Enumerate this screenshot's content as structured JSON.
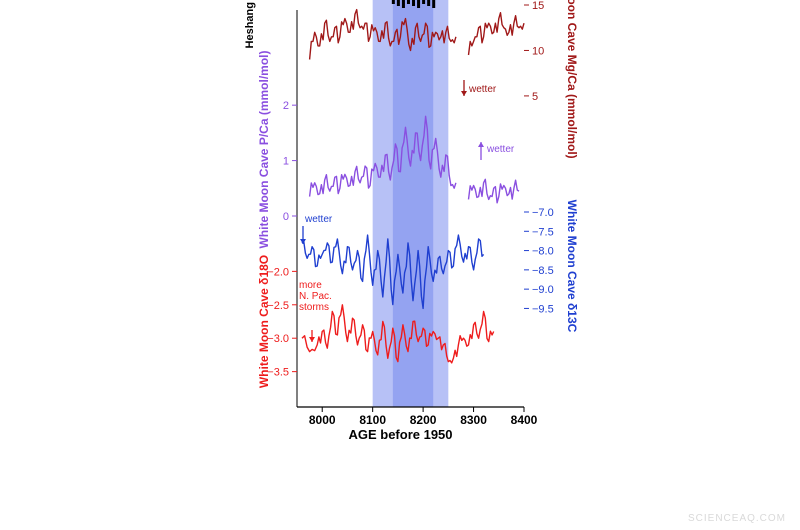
{
  "chart_data": {
    "type": "line",
    "xlabel": "AGE before 1950",
    "xlim": [
      7950,
      8400
    ],
    "x_ticks": [
      "8000",
      "8100",
      "8200",
      "8300",
      "8400"
    ],
    "shaded_intervals": [
      {
        "x_range": [
          8100,
          8250
        ],
        "color": "#aab6f5"
      },
      {
        "x_range": [
          8140,
          8220
        ],
        "color": "#8e9df0"
      }
    ],
    "series": [
      {
        "id": "heshang",
        "ylabel": "Heshang",
        "color": "#000000",
        "x": [
          8140,
          8150,
          8160,
          8170,
          8180,
          8190,
          8200,
          8210,
          8220
        ],
        "y_px_band": "top"
      },
      {
        "id": "mgca",
        "ylabel": "White Moon Cave Mg/Ca (mmol/mol)",
        "color": "#a01818",
        "ylim": [
          4,
          15
        ],
        "y_ticks": [
          "15",
          "10",
          "5"
        ],
        "annotation": "wetter",
        "x": [
          7975,
          7985,
          7995,
          8005,
          8015,
          8025,
          8035,
          8045,
          8055,
          8065,
          8075,
          8085,
          8095,
          8105,
          8115,
          8125,
          8135,
          8145,
          8155,
          8165,
          8175,
          8185,
          8195,
          8205,
          8215,
          8225,
          8235,
          8245,
          8255,
          8265,
          8290,
          8300,
          8310,
          8320,
          8330,
          8340,
          8350,
          8360,
          8370,
          8380,
          8390,
          8400
        ],
        "y": [
          9.0,
          12.0,
          10.5,
          13.0,
          11.0,
          12.5,
          11.5,
          13.5,
          12.0,
          14.0,
          12.5,
          13.0,
          11.5,
          12.5,
          11.0,
          13.0,
          10.5,
          12.0,
          11.5,
          13.5,
          10.0,
          12.5,
          11.0,
          13.0,
          10.5,
          12.0,
          11.5,
          12.0,
          11.0,
          11.5,
          9.5,
          11.0,
          12.5,
          11.5,
          13.0,
          12.0,
          13.5,
          12.5,
          12.0,
          13.0,
          12.5,
          13.0
        ]
      },
      {
        "id": "pca",
        "ylabel": "White Moon Cave P/Ca (mmol/mol)",
        "color": "#8a4fe0",
        "ylim": [
          0,
          2.4
        ],
        "y_ticks": [
          "2",
          "1",
          "0"
        ],
        "annotation": "wetter",
        "x": [
          7975,
          7985,
          7995,
          8005,
          8015,
          8025,
          8035,
          8045,
          8055,
          8065,
          8075,
          8085,
          8095,
          8105,
          8115,
          8125,
          8135,
          8145,
          8155,
          8165,
          8175,
          8185,
          8195,
          8205,
          8215,
          8225,
          8235,
          8245,
          8255,
          8265,
          8290,
          8300,
          8310,
          8320,
          8330,
          8340,
          8350,
          8360,
          8370,
          8380,
          8390
        ],
        "y": [
          0.35,
          0.6,
          0.4,
          0.65,
          0.45,
          0.7,
          0.5,
          0.75,
          0.55,
          0.8,
          0.6,
          0.9,
          0.55,
          0.95,
          0.7,
          1.1,
          0.65,
          1.3,
          0.8,
          1.6,
          0.9,
          1.5,
          1.0,
          1.8,
          0.85,
          1.4,
          0.7,
          1.1,
          0.55,
          0.6,
          0.3,
          0.55,
          0.35,
          0.6,
          0.3,
          0.5,
          0.35,
          0.55,
          0.4,
          0.5,
          0.45
        ]
      },
      {
        "id": "d13c",
        "ylabel": "White Moon Cave δ13C",
        "color": "#1f3fd0",
        "ylim": [
          -9.8,
          -7.0
        ],
        "y_ticks": [
          "-7.0",
          "-7.5",
          "-8.0",
          "-8.5",
          "-9.0",
          "-9.5"
        ],
        "annotation": "wetter",
        "x": [
          7960,
          7970,
          7980,
          7990,
          8000,
          8010,
          8020,
          8030,
          8040,
          8050,
          8060,
          8070,
          8080,
          8090,
          8100,
          8110,
          8120,
          8130,
          8140,
          8150,
          8160,
          8170,
          8180,
          8190,
          8200,
          8210,
          8220,
          8230,
          8240,
          8250,
          8260,
          8270,
          8280,
          8290,
          8300,
          8310,
          8320,
          8340,
          8360,
          8380,
          8400
        ],
        "y": [
          -7.8,
          -8.2,
          -7.9,
          -8.4,
          -8.1,
          -7.8,
          -8.3,
          -7.7,
          -8.6,
          -7.9,
          -8.5,
          -8.0,
          -8.8,
          -7.6,
          -8.9,
          -8.0,
          -9.2,
          -7.7,
          -9.4,
          -8.1,
          -9.1,
          -7.8,
          -9.3,
          -8.0,
          -9.5,
          -7.9,
          -8.8,
          -8.2,
          -8.6,
          -8.0,
          -8.4,
          -7.6,
          -8.3,
          -7.9,
          -8.5,
          -7.7,
          -8.1,
          -7.9,
          -7.8,
          -8.0,
          -7.8
        ]
      },
      {
        "id": "d18o",
        "ylabel": "White Moon Cave δ18O",
        "color": "#ee1c1c",
        "ylim": [
          -3.7,
          -1.8
        ],
        "y_ticks": [
          "-2.0",
          "-2.5",
          "-3.0",
          "-3.5"
        ],
        "annotation": "more N. Pac. storms",
        "x": [
          7960,
          7975,
          7990,
          8000,
          8010,
          8020,
          8030,
          8040,
          8050,
          8060,
          8070,
          8080,
          8090,
          8100,
          8110,
          8120,
          8130,
          8140,
          8150,
          8160,
          8170,
          8180,
          8190,
          8200,
          8210,
          8220,
          8230,
          8240,
          8250,
          8260,
          8270,
          8280,
          8290,
          8300,
          8310,
          8320,
          8330,
          8340,
          8360,
          8380,
          8400
        ],
        "y": [
          -3.0,
          -3.2,
          -3.1,
          -2.9,
          -3.15,
          -2.6,
          -2.95,
          -2.5,
          -3.05,
          -2.7,
          -3.1,
          -2.8,
          -3.2,
          -2.9,
          -3.25,
          -2.75,
          -3.3,
          -2.85,
          -3.35,
          -2.8,
          -3.2,
          -2.75,
          -3.05,
          -2.85,
          -3.1,
          -2.9,
          -3.0,
          -3.1,
          -3.35,
          -3.3,
          -3.1,
          -3.0,
          -3.1,
          -2.8,
          -3.0,
          -2.6,
          -3.05,
          -2.9,
          -2.8,
          -2.7,
          -2.5
        ]
      }
    ]
  },
  "watermark": "SCIENCEAQ.COM"
}
